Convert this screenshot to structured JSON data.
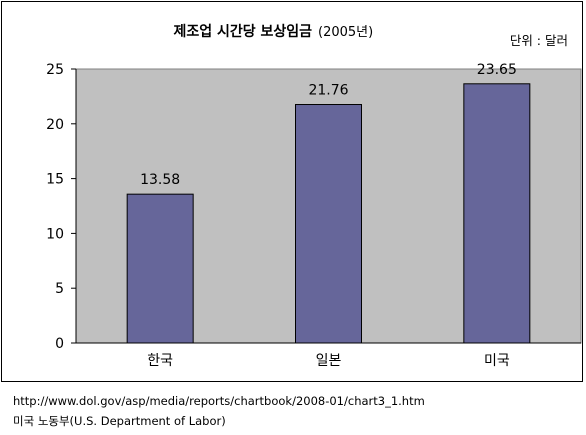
{
  "chart_data": {
    "type": "bar",
    "title": "제조업 시간당 보상임금",
    "subtitle": "(2005년)",
    "unit_label": "단위 : 달러",
    "categories": [
      "한국",
      "일본",
      "미국"
    ],
    "values": [
      13.58,
      21.76,
      23.65
    ],
    "value_labels": [
      "13.58",
      "21.76",
      "23.65"
    ],
    "ylim": [
      0,
      25
    ],
    "yticks": [
      "0",
      "5",
      "10",
      "15",
      "20",
      "25"
    ],
    "xlabel": "",
    "ylabel": "",
    "grid": false,
    "legend": "none",
    "colors": {
      "bar_fill": "#66669a",
      "bar_stroke": "#000000",
      "plot_background": "#c0c0c0",
      "axis": "#000000"
    }
  },
  "source": {
    "url": "http://www.dol.gov/asp/media/reports/chartbook/2008-01/chart3_1.htm",
    "organization": "미국 노동부(U.S. Department of Labor)"
  }
}
